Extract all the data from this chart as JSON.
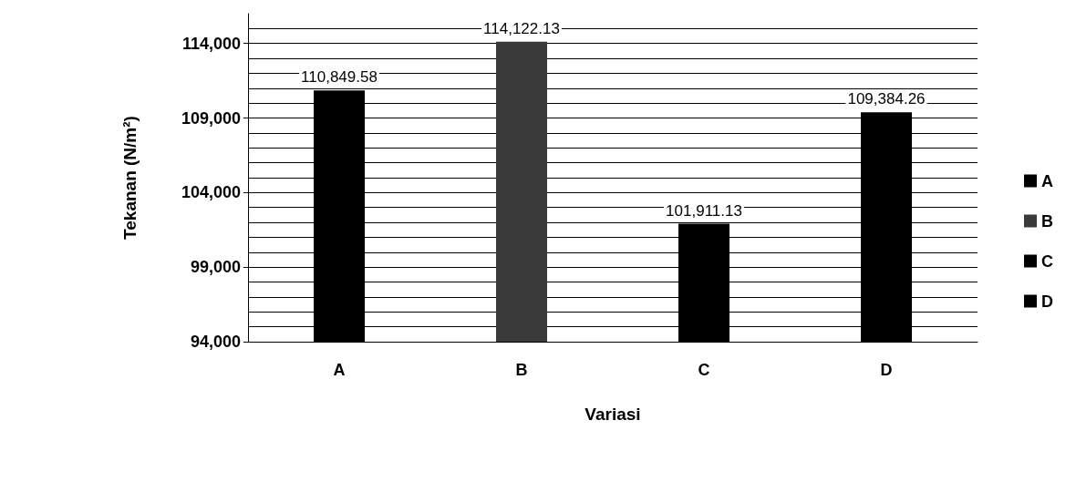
{
  "chart_data": {
    "type": "bar",
    "xlabel": "Variasi",
    "ylabel": "Tekanan (N/m²)",
    "categories": [
      "A",
      "B",
      "C",
      "D"
    ],
    "series": [
      {
        "name": "A",
        "color": "#000000",
        "values": [
          110849.58,
          null,
          null,
          null
        ],
        "value_labels": [
          "110,849.58",
          null,
          null,
          null
        ]
      },
      {
        "name": "B",
        "color": "#3a3a3a",
        "values": [
          null,
          114122.13,
          null,
          null
        ],
        "value_labels": [
          null,
          "114,122.13",
          null,
          null
        ]
      },
      {
        "name": "C",
        "color": "#000000",
        "values": [
          null,
          null,
          101911.13,
          null
        ],
        "value_labels": [
          null,
          null,
          "101,911.13",
          null
        ]
      },
      {
        "name": "D",
        "color": "#000000",
        "values": [
          null,
          null,
          null,
          109384.26
        ],
        "value_labels": [
          null,
          null,
          null,
          "109,384.26"
        ]
      }
    ],
    "ylim": [
      94000,
      116000
    ],
    "yticks": [
      {
        "value": 94000,
        "label": "94,000"
      },
      {
        "value": 99000,
        "label": "99,000"
      },
      {
        "value": 104000,
        "label": "104,000"
      },
      {
        "value": 109000,
        "label": "109,000"
      },
      {
        "value": 114000,
        "label": "114,000"
      }
    ],
    "grid": "y",
    "legend": "right"
  }
}
